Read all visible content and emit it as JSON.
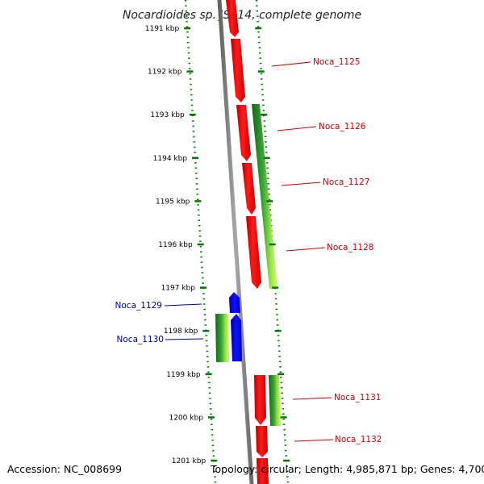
{
  "title": "Nocardioides sp. JS614, complete genome",
  "ticks": [
    "1191 kbp",
    "1192 kbp",
    "1193 kbp",
    "1194 kbp",
    "1195 kbp",
    "1196 kbp",
    "1197 kbp",
    "1198 kbp",
    "1199 kbp",
    "1200 kbp",
    "1201 kbp"
  ],
  "genes": [
    {
      "label": "Noca_1125",
      "strand": "forward"
    },
    {
      "label": "Noca_1126",
      "strand": "forward"
    },
    {
      "label": "Noca_1127",
      "strand": "forward"
    },
    {
      "label": "Noca_1128",
      "strand": "forward"
    },
    {
      "label": "Noca_1129",
      "strand": "reverse"
    },
    {
      "label": "Noca_1130",
      "strand": "reverse"
    },
    {
      "label": "Noca_1131",
      "strand": "forward"
    },
    {
      "label": "Noca_1132",
      "strand": "forward"
    }
  ],
  "colors": {
    "forward_gene": "#ff0000",
    "reverse_gene": "#0000ee",
    "forward_label": "#cc0000",
    "reverse_label": "#000099",
    "gc_dark": "#1a7a1a",
    "gc_light": "#b8ff3a",
    "ticks": "#007700",
    "backbone": "#808080"
  },
  "footer": {
    "accession": "Accession: NC_008699",
    "summary": "Topology: circular; Length: 4,985,871 bp; Genes: 4,700"
  }
}
